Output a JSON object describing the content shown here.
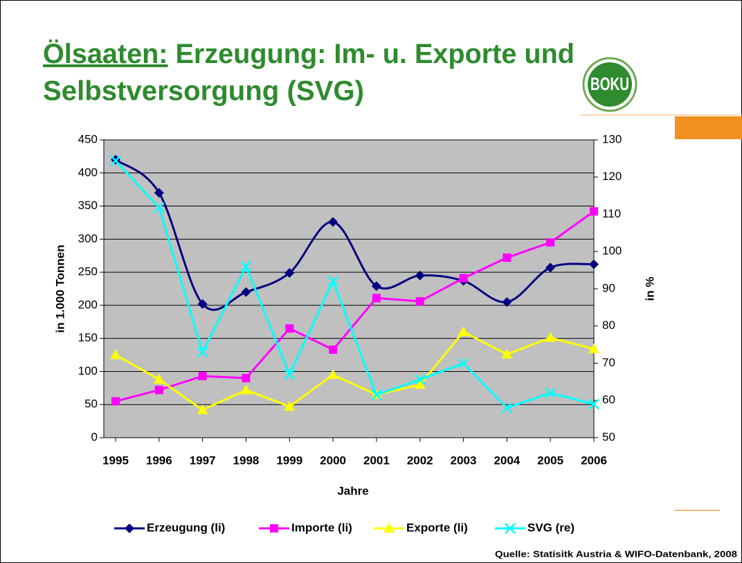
{
  "title_underlined": "Ölsaaten:",
  "title_line1": " Erzeugung: Im- u. Exporte und",
  "title_line2": "Selbstversorgung (SVG)",
  "logo": "BOKU",
  "source": "Quelle: Statisitk Austria & WIFO-Datenbank, 2008",
  "chart_data": {
    "type": "line",
    "categories": [
      "1995",
      "1996",
      "1997",
      "1998",
      "1999",
      "2000",
      "2001",
      "2002",
      "2003",
      "2004",
      "2005",
      "2006"
    ],
    "x_label": "Jahre",
    "y_label": "in 1.000 Tonnen",
    "y2_label": "in %",
    "ylim": [
      0,
      450
    ],
    "yticks": [
      0,
      50,
      100,
      150,
      200,
      250,
      300,
      350,
      400,
      450
    ],
    "y2lim": [
      50,
      130
    ],
    "y2ticks": [
      50,
      60,
      70,
      80,
      90,
      100,
      110,
      120,
      130
    ],
    "grid": true,
    "legend": "bottom",
    "series": [
      {
        "name": "Erzeugung (li)",
        "color": "#000080",
        "marker": "diamond",
        "smooth": true,
        "values": [
          420,
          370,
          202,
          220,
          249,
          326,
          229,
          245,
          237,
          205,
          257,
          262
        ]
      },
      {
        "name": "Importe (li)",
        "color": "#ff00ff",
        "marker": "square",
        "values": [
          55,
          72,
          93,
          90,
          165,
          133,
          211,
          206,
          241,
          272,
          295,
          342
        ]
      },
      {
        "name": "Exporte (li)",
        "color": "#ffff00",
        "marker": "triangle",
        "values": [
          125,
          88,
          42,
          72,
          47,
          95,
          65,
          80,
          160,
          126,
          151,
          134
        ]
      },
      {
        "name": "SVG (re)",
        "color": "#00ffff",
        "marker": "x",
        "axis": "y2",
        "values": [
          124.4,
          111.8,
          73,
          96,
          67,
          92,
          61.5,
          65.6,
          70,
          58,
          62,
          59
        ]
      }
    ]
  }
}
